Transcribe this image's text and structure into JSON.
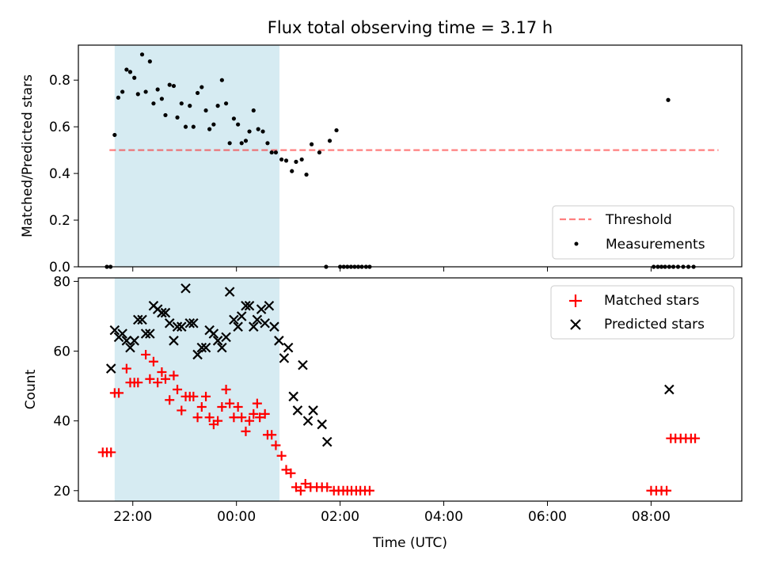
{
  "title": "Flux total observing time = 3.17 h",
  "colors": {
    "shade": "#add8e6",
    "threshold": "#ff0000",
    "measurement": "#000000",
    "matched": "#ff0000",
    "predicted": "#000000"
  },
  "chart_data": [
    {
      "type": "scatter",
      "ylabel": "Matched/Predicted stars",
      "xlim": [
        20.95,
        33.75
      ],
      "ylim": [
        0.0,
        0.95
      ],
      "yticks": [
        0.0,
        0.2,
        0.4,
        0.6,
        0.8
      ],
      "ytick_labels": [
        "0.0",
        "0.2",
        "0.4",
        "0.6",
        "0.8"
      ],
      "xticks": [
        22,
        24,
        26,
        28,
        30,
        32
      ],
      "shaded_interval": [
        21.65,
        24.83
      ],
      "threshold": {
        "name": "Threshold",
        "y": 0.5,
        "x_range": [
          21.55,
          33.3
        ],
        "style": "dashed",
        "alpha": 0.5
      },
      "legend": {
        "location": "lower right",
        "entries": [
          "Threshold",
          "Measurements"
        ]
      },
      "series": [
        {
          "name": "Measurements",
          "marker": "dot",
          "points": [
            [
              21.5,
              0.0
            ],
            [
              21.57,
              0.0
            ],
            [
              21.65,
              0.565
            ],
            [
              21.72,
              0.725
            ],
            [
              21.8,
              0.75
            ],
            [
              21.88,
              0.845
            ],
            [
              21.95,
              0.835
            ],
            [
              22.03,
              0.81
            ],
            [
              22.1,
              0.74
            ],
            [
              22.18,
              0.91
            ],
            [
              22.25,
              0.75
            ],
            [
              22.33,
              0.88
            ],
            [
              22.4,
              0.7
            ],
            [
              22.48,
              0.76
            ],
            [
              22.56,
              0.72
            ],
            [
              22.63,
              0.65
            ],
            [
              22.71,
              0.78
            ],
            [
              22.79,
              0.775
            ],
            [
              22.86,
              0.64
            ],
            [
              22.94,
              0.7
            ],
            [
              23.02,
              0.6
            ],
            [
              23.1,
              0.69
            ],
            [
              23.17,
              0.6
            ],
            [
              23.25,
              0.745
            ],
            [
              23.33,
              0.77
            ],
            [
              23.41,
              0.67
            ],
            [
              23.48,
              0.59
            ],
            [
              23.56,
              0.61
            ],
            [
              23.64,
              0.69
            ],
            [
              23.72,
              0.8
            ],
            [
              23.8,
              0.7
            ],
            [
              23.87,
              0.53
            ],
            [
              23.95,
              0.635
            ],
            [
              24.03,
              0.61
            ],
            [
              24.1,
              0.53
            ],
            [
              24.18,
              0.54
            ],
            [
              24.25,
              0.58
            ],
            [
              24.33,
              0.67
            ],
            [
              24.42,
              0.59
            ],
            [
              24.51,
              0.58
            ],
            [
              24.6,
              0.53
            ],
            [
              24.68,
              0.49
            ],
            [
              24.76,
              0.49
            ],
            [
              24.87,
              0.46
            ],
            [
              24.96,
              0.455
            ],
            [
              25.07,
              0.41
            ],
            [
              25.15,
              0.45
            ],
            [
              25.26,
              0.46
            ],
            [
              25.35,
              0.395
            ],
            [
              25.45,
              0.525
            ],
            [
              25.6,
              0.49
            ],
            [
              25.73,
              0.0
            ],
            [
              25.8,
              0.54
            ],
            [
              25.93,
              0.585
            ],
            [
              26.0,
              0.0
            ],
            [
              26.07,
              0.0
            ],
            [
              26.14,
              0.0
            ],
            [
              26.21,
              0.0
            ],
            [
              26.28,
              0.0
            ],
            [
              26.35,
              0.0
            ],
            [
              26.42,
              0.0
            ],
            [
              26.5,
              0.0
            ],
            [
              26.57,
              0.0
            ],
            [
              32.05,
              0.0
            ],
            [
              32.13,
              0.0
            ],
            [
              32.2,
              0.0
            ],
            [
              32.27,
              0.0
            ],
            [
              32.35,
              0.0
            ],
            [
              32.33,
              0.715
            ],
            [
              32.43,
              0.0
            ],
            [
              32.52,
              0.0
            ],
            [
              32.62,
              0.0
            ],
            [
              32.72,
              0.0
            ],
            [
              32.82,
              0.0
            ]
          ]
        }
      ]
    },
    {
      "type": "scatter",
      "xlabel": "Time (UTC)",
      "ylabel": "Count",
      "xlim": [
        20.95,
        33.75
      ],
      "ylim": [
        17,
        81
      ],
      "yticks": [
        20,
        40,
        60,
        80
      ],
      "ytick_labels": [
        "20",
        "40",
        "60",
        "80"
      ],
      "xticks": [
        22,
        24,
        26,
        28,
        30,
        32
      ],
      "xtick_labels": [
        "22:00",
        "00:00",
        "02:00",
        "04:00",
        "06:00",
        "08:00"
      ],
      "shaded_interval": [
        21.65,
        24.83
      ],
      "legend": {
        "location": "upper right",
        "entries": [
          "Matched stars",
          "Predicted stars"
        ]
      },
      "series": [
        {
          "name": "Matched stars",
          "marker": "plus",
          "points": [
            [
              21.42,
              31
            ],
            [
              21.5,
              31
            ],
            [
              21.58,
              31
            ],
            [
              21.65,
              48
            ],
            [
              21.73,
              48
            ],
            [
              21.88,
              55
            ],
            [
              21.95,
              51
            ],
            [
              22.03,
              51
            ],
            [
              22.1,
              51
            ],
            [
              22.25,
              59
            ],
            [
              22.33,
              52
            ],
            [
              22.4,
              57
            ],
            [
              22.48,
              51
            ],
            [
              22.56,
              54
            ],
            [
              22.63,
              52
            ],
            [
              22.71,
              46
            ],
            [
              22.79,
              53
            ],
            [
              22.86,
              49
            ],
            [
              22.94,
              43
            ],
            [
              23.02,
              47
            ],
            [
              23.1,
              47
            ],
            [
              23.17,
              47
            ],
            [
              23.25,
              41
            ],
            [
              23.33,
              44
            ],
            [
              23.41,
              47
            ],
            [
              23.48,
              41
            ],
            [
              23.56,
              39
            ],
            [
              23.64,
              40
            ],
            [
              23.72,
              44
            ],
            [
              23.8,
              49
            ],
            [
              23.87,
              45
            ],
            [
              23.95,
              41
            ],
            [
              24.03,
              44
            ],
            [
              24.1,
              41
            ],
            [
              24.18,
              37
            ],
            [
              24.25,
              40
            ],
            [
              24.33,
              42
            ],
            [
              24.4,
              45
            ],
            [
              24.45,
              41
            ],
            [
              24.55,
              42
            ],
            [
              24.6,
              36
            ],
            [
              24.68,
              36
            ],
            [
              24.76,
              33
            ],
            [
              24.87,
              30
            ],
            [
              24.96,
              26
            ],
            [
              25.05,
              25
            ],
            [
              25.15,
              21
            ],
            [
              25.24,
              20
            ],
            [
              25.33,
              22
            ],
            [
              25.43,
              21
            ],
            [
              25.55,
              21
            ],
            [
              25.65,
              21
            ],
            [
              25.75,
              21
            ],
            [
              25.88,
              20
            ],
            [
              25.97,
              20
            ],
            [
              26.06,
              20
            ],
            [
              26.14,
              20
            ],
            [
              26.22,
              20
            ],
            [
              26.31,
              20
            ],
            [
              26.39,
              20
            ],
            [
              26.48,
              20
            ],
            [
              26.57,
              20
            ],
            [
              32.0,
              20
            ],
            [
              32.1,
              20
            ],
            [
              32.2,
              20
            ],
            [
              32.3,
              20
            ],
            [
              32.38,
              35
            ],
            [
              32.47,
              35
            ],
            [
              32.57,
              35
            ],
            [
              32.67,
              35
            ],
            [
              32.77,
              35
            ],
            [
              32.85,
              35
            ]
          ]
        },
        {
          "name": "Predicted stars",
          "marker": "x",
          "points": [
            [
              21.58,
              55
            ],
            [
              21.65,
              66
            ],
            [
              21.73,
              64
            ],
            [
              21.8,
              65
            ],
            [
              21.88,
              63
            ],
            [
              21.95,
              61
            ],
            [
              22.03,
              63
            ],
            [
              22.1,
              69
            ],
            [
              22.18,
              69
            ],
            [
              22.25,
              65
            ],
            [
              22.33,
              65
            ],
            [
              22.4,
              73
            ],
            [
              22.48,
              72
            ],
            [
              22.56,
              71
            ],
            [
              22.63,
              71
            ],
            [
              22.71,
              68
            ],
            [
              22.79,
              63
            ],
            [
              22.86,
              67
            ],
            [
              22.94,
              67
            ],
            [
              23.02,
              78
            ],
            [
              23.1,
              68
            ],
            [
              23.17,
              68
            ],
            [
              23.25,
              59
            ],
            [
              23.33,
              61
            ],
            [
              23.41,
              61
            ],
            [
              23.48,
              66
            ],
            [
              23.56,
              65
            ],
            [
              23.64,
              63
            ],
            [
              23.72,
              61
            ],
            [
              23.8,
              64
            ],
            [
              23.87,
              77
            ],
            [
              23.95,
              69
            ],
            [
              24.03,
              67
            ],
            [
              24.1,
              70
            ],
            [
              24.18,
              73
            ],
            [
              24.25,
              73
            ],
            [
              24.33,
              67
            ],
            [
              24.4,
              69
            ],
            [
              24.48,
              72
            ],
            [
              24.55,
              68
            ],
            [
              24.63,
              73
            ],
            [
              24.73,
              67
            ],
            [
              24.82,
              63
            ],
            [
              24.92,
              58
            ],
            [
              25.0,
              61
            ],
            [
              25.1,
              47
            ],
            [
              25.18,
              43
            ],
            [
              25.28,
              56
            ],
            [
              25.38,
              40
            ],
            [
              25.48,
              43
            ],
            [
              25.65,
              39
            ],
            [
              25.75,
              34
            ],
            [
              32.35,
              49
            ]
          ]
        }
      ]
    }
  ]
}
